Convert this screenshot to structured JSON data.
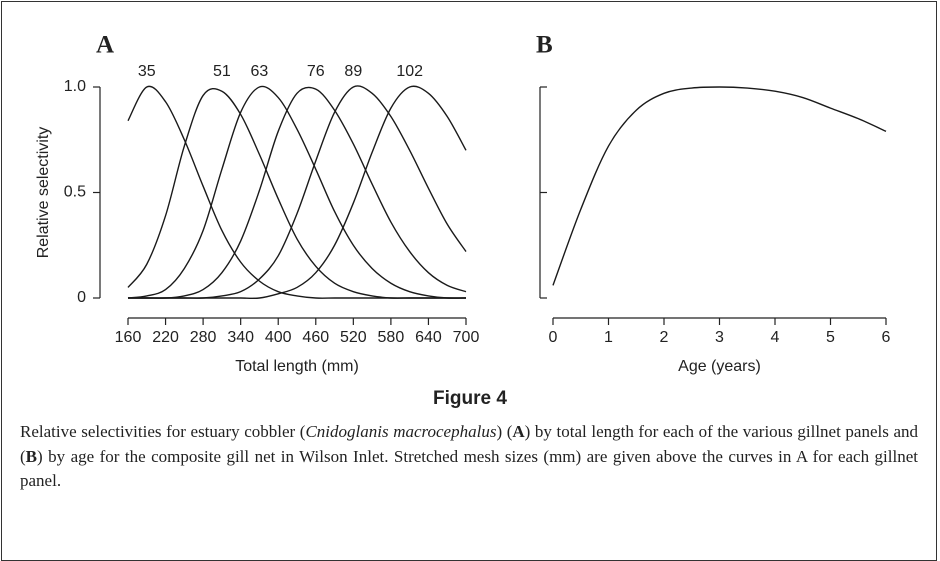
{
  "chart_data": [
    {
      "type": "line",
      "panel_label": "A",
      "y_label": "Relative selectivity",
      "x_label": "Total length (mm)",
      "x": [
        160,
        190,
        220,
        250,
        280,
        310,
        340,
        370,
        400,
        430,
        460,
        490,
        520,
        550,
        580,
        610,
        640,
        670,
        700
      ],
      "xlim": [
        160,
        700
      ],
      "xticks": [
        160,
        220,
        280,
        340,
        400,
        460,
        520,
        580,
        640,
        700
      ],
      "ylim": [
        0,
        1
      ],
      "yticks": [
        0,
        0.5,
        {
          "value": 1,
          "label": "1.0"
        }
      ],
      "series": [
        {
          "name": "35",
          "color": "#1a1a1a",
          "values": [
            0.84,
            1,
            0.93,
            0.75,
            0.53,
            0.32,
            0.17,
            0.08,
            0.03,
            0.01,
            0,
            0,
            0,
            0,
            0,
            0,
            0,
            0,
            0
          ]
        },
        {
          "name": "51",
          "color": "#1a1a1a",
          "values": [
            0.05,
            0.16,
            0.39,
            0.72,
            0.96,
            0.98,
            0.87,
            0.68,
            0.47,
            0.28,
            0.15,
            0.07,
            0.03,
            0.01,
            0,
            0,
            0,
            0,
            0
          ]
        },
        {
          "name": "63",
          "color": "#1a1a1a",
          "values": [
            0,
            0.01,
            0.04,
            0.14,
            0.32,
            0.61,
            0.88,
            1,
            0.95,
            0.8,
            0.61,
            0.41,
            0.25,
            0.14,
            0.07,
            0.03,
            0.01,
            0,
            0
          ]
        },
        {
          "name": "76",
          "color": "#1a1a1a",
          "values": [
            0,
            0,
            0,
            0.01,
            0.04,
            0.12,
            0.27,
            0.51,
            0.79,
            0.97,
            0.99,
            0.89,
            0.73,
            0.54,
            0.36,
            0.22,
            0.12,
            0.06,
            0.03
          ]
        },
        {
          "name": "89",
          "color": "#1a1a1a",
          "values": [
            0,
            0,
            0,
            0,
            0,
            0.01,
            0.03,
            0.09,
            0.2,
            0.4,
            0.65,
            0.88,
            1,
            0.97,
            0.86,
            0.7,
            0.52,
            0.35,
            0.22
          ]
        },
        {
          "name": "102",
          "color": "#1a1a1a",
          "values": [
            0,
            0,
            0,
            0,
            0,
            0,
            0,
            0,
            0.02,
            0.05,
            0.12,
            0.25,
            0.45,
            0.69,
            0.9,
            1,
            0.97,
            0.86,
            0.7
          ]
        }
      ]
    },
    {
      "type": "line",
      "panel_label": "B",
      "x_label": "Age (years)",
      "x": [
        0,
        0.5,
        1,
        1.5,
        2,
        2.5,
        3,
        3.5,
        4,
        4.5,
        5,
        5.5,
        6
      ],
      "xlim": [
        0,
        6
      ],
      "xticks": [
        0,
        1,
        2,
        3,
        4,
        5,
        6
      ],
      "ylim": [
        0,
        1
      ],
      "yticks": [
        0,
        0.5,
        1
      ],
      "ytick_labels": false,
      "series": [
        {
          "color": "#1a1a1a",
          "values": [
            0.06,
            0.42,
            0.72,
            0.89,
            0.97,
            0.995,
            1,
            0.995,
            0.98,
            0.95,
            0.9,
            0.85,
            0.79
          ]
        }
      ]
    }
  ],
  "figure": {
    "label": "Figure 4",
    "caption": [
      "Relative selectivities for estuary cobbler (",
      "Cnidoglanis macrocephalus",
      ") (",
      "A",
      ") by total length for each of the various gillnet panels and (",
      "B",
      ") by age for the composite gill net in Wilson Inlet. Stretched mesh sizes (mm) are given above the curves in A for each gillnet panel."
    ]
  }
}
